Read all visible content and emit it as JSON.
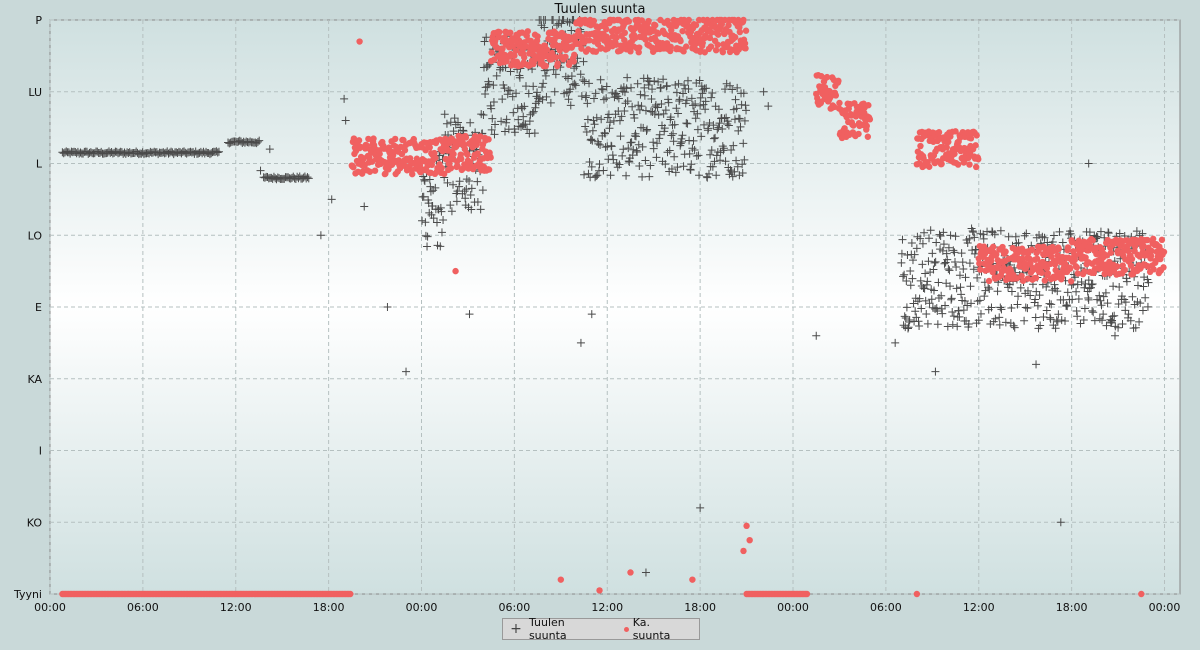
{
  "chart_data": {
    "type": "scatter",
    "title": "Tuulen suunta",
    "xlabel": "",
    "ylabel": "",
    "x_tick_labels": [
      "00:00",
      "06:00",
      "12:00",
      "18:00",
      "00:00",
      "06:00",
      "12:00",
      "18:00",
      "00:00",
      "06:00",
      "12:00",
      "18:00",
      "00:00"
    ],
    "x_range_hours": [
      0,
      73
    ],
    "y_tick_labels": [
      "Tyyni",
      "KO",
      "I",
      "KA",
      "E",
      "LO",
      "L",
      "LU",
      "P"
    ],
    "y_range": [
      0,
      8
    ],
    "grid": true,
    "legend_position": "bottom-center",
    "colors": {
      "raw": "#4a4a4a",
      "avg": "#f06060",
      "plot_bg": "#f5fbfb",
      "outer_bg": "#c9d9d9"
    },
    "series": [
      {
        "name": "Tuulen suunta",
        "marker": "plus",
        "segments": [
          {
            "x_start": 0.8,
            "x_end": 11.0,
            "y": 6.15
          },
          {
            "x_start": 11.5,
            "x_end": 13.6,
            "y": 6.3
          },
          {
            "x_start": 13.8,
            "x_end": 16.8,
            "y": 5.8
          },
          {
            "x_start": 24.0,
            "x_end": 25.5,
            "y": 5.5
          },
          {
            "x_start": 25.5,
            "x_end": 28.0,
            "y": 6.0
          },
          {
            "x_start": 28.0,
            "x_end": 31.5,
            "y": 7.1
          },
          {
            "x_start": 31.5,
            "x_end": 34.5,
            "y": 7.5
          },
          {
            "x_start": 34.5,
            "x_end": 45.0,
            "y": 6.5
          },
          {
            "x_start": 55.0,
            "x_end": 71.0,
            "y": 4.4
          }
        ],
        "points": [
          [
            14.2,
            6.2
          ],
          [
            13.6,
            5.9
          ],
          [
            17.5,
            5.0
          ],
          [
            18.2,
            5.5
          ],
          [
            19.1,
            6.6
          ],
          [
            19.0,
            6.9
          ],
          [
            20.3,
            5.4
          ],
          [
            21.8,
            4.0
          ],
          [
            23.0,
            3.1
          ],
          [
            27.1,
            3.9
          ],
          [
            34.3,
            3.5
          ],
          [
            35.0,
            3.9
          ],
          [
            46.1,
            7.0
          ],
          [
            46.4,
            6.8
          ],
          [
            49.5,
            3.6
          ],
          [
            54.6,
            3.5
          ],
          [
            57.2,
            3.1
          ],
          [
            63.7,
            3.2
          ],
          [
            65.3,
            1.0
          ],
          [
            67.1,
            6.0
          ],
          [
            67.1,
            4.1
          ],
          [
            68.8,
            3.6
          ],
          [
            42.0,
            1.2
          ],
          [
            38.5,
            0.3
          ]
        ]
      },
      {
        "name": "Ka. suunta",
        "marker": "dot",
        "segments": [
          {
            "x_start": 0.8,
            "x_end": 19.5,
            "y": 0.0
          },
          {
            "x_start": 19.5,
            "x_end": 26.0,
            "y": 6.1
          },
          {
            "x_start": 26.0,
            "x_end": 28.5,
            "y": 6.15
          },
          {
            "x_start": 28.5,
            "x_end": 34.0,
            "y": 7.6
          },
          {
            "x_start": 34.0,
            "x_end": 45.0,
            "y": 7.8
          },
          {
            "x_start": 45.0,
            "x_end": 49.0,
            "y": 0.0
          },
          {
            "x_start": 49.5,
            "x_end": 51.0,
            "y": 7.0
          },
          {
            "x_start": 51.0,
            "x_end": 53.0,
            "y": 6.6
          },
          {
            "x_start": 56.0,
            "x_end": 60.0,
            "y": 6.2
          },
          {
            "x_start": 60.0,
            "x_end": 66.0,
            "y": 4.6
          },
          {
            "x_start": 66.0,
            "x_end": 72.0,
            "y": 4.7
          }
        ],
        "points": [
          [
            20.0,
            7.7
          ],
          [
            21.0,
            5.9
          ],
          [
            26.2,
            4.5
          ],
          [
            33.0,
            0.2
          ],
          [
            37.5,
            0.3
          ],
          [
            41.5,
            0.2
          ],
          [
            45.0,
            0.95
          ],
          [
            45.2,
            0.75
          ],
          [
            44.8,
            0.6
          ],
          [
            35.5,
            0.05
          ],
          [
            56.0,
            0.0
          ],
          [
            70.5,
            0.0
          ]
        ]
      }
    ]
  }
}
